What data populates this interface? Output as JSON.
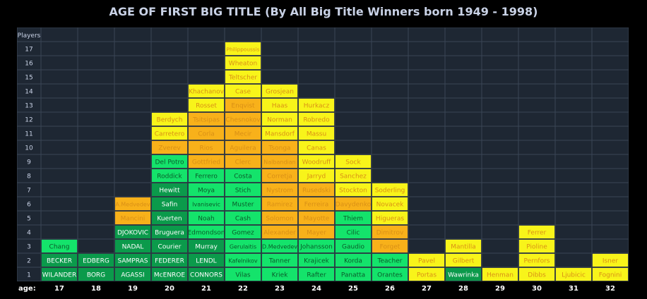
{
  "title": "AGE OF FIRST BIG TITLE (By All Big Title Winners born 1949 - 1998)",
  "chart_data": {
    "type": "table",
    "title": "AGE OF FIRST BIG TITLE (By All Big Title Winners born 1949 - 1998)",
    "ylabel": "Players",
    "xlabel": "age:",
    "ages": [
      "17",
      "18",
      "19",
      "20",
      "21",
      "22",
      "23",
      "24",
      "25",
      "26",
      "27",
      "28",
      "29",
      "30",
      "31",
      "32"
    ],
    "rows": [
      "1",
      "2",
      "3",
      "4",
      "5",
      "6",
      "7",
      "8",
      "9",
      "10",
      "11",
      "12",
      "13",
      "14",
      "15",
      "16",
      "17"
    ],
    "colors": {
      "dark-green": "#0b9a4b",
      "green": "#14e36b",
      "orange": "#f8b11a",
      "yellow": "#f8f41a",
      "text-light": "#ffffff",
      "text-dark": "#d98f16"
    },
    "columns": [
      {
        "age": "17",
        "players": [
          {
            "name": "WILANDER",
            "color": "dark-green"
          },
          {
            "name": "BECKER",
            "color": "dark-green"
          },
          {
            "name": "Chang",
            "color": "green"
          }
        ]
      },
      {
        "age": "18",
        "players": [
          {
            "name": "BORG",
            "color": "dark-green"
          },
          {
            "name": "EDBERG",
            "color": "dark-green"
          }
        ]
      },
      {
        "age": "19",
        "players": [
          {
            "name": "AGASSI",
            "color": "dark-green"
          },
          {
            "name": "SAMPRAS",
            "color": "dark-green"
          },
          {
            "name": "NADAL",
            "color": "dark-green"
          },
          {
            "name": "DJOKOVIC",
            "color": "dark-green"
          },
          {
            "name": "Mancini",
            "color": "orange"
          },
          {
            "name": "A.Medvedev",
            "color": "orange"
          }
        ]
      },
      {
        "age": "20",
        "players": [
          {
            "name": "McENROE",
            "color": "dark-green"
          },
          {
            "name": "FEDERER",
            "color": "dark-green"
          },
          {
            "name": "Courier",
            "color": "dark-green"
          },
          {
            "name": "Bruguera",
            "color": "dark-green"
          },
          {
            "name": "Kuerten",
            "color": "dark-green"
          },
          {
            "name": "Safin",
            "color": "dark-green"
          },
          {
            "name": "Hewitt",
            "color": "dark-green"
          },
          {
            "name": "Roddick",
            "color": "green"
          },
          {
            "name": "Del Potro",
            "color": "green"
          },
          {
            "name": "Zverev",
            "color": "orange"
          },
          {
            "name": "Carretero",
            "color": "yellow"
          },
          {
            "name": "Berdych",
            "color": "yellow"
          }
        ]
      },
      {
        "age": "21",
        "players": [
          {
            "name": "CONNORS",
            "color": "dark-green"
          },
          {
            "name": "LENDL",
            "color": "dark-green"
          },
          {
            "name": "Murray",
            "color": "dark-green"
          },
          {
            "name": "Edmondson",
            "color": "green"
          },
          {
            "name": "Noah",
            "color": "green"
          },
          {
            "name": "Ivanisevic",
            "color": "green"
          },
          {
            "name": "Moya",
            "color": "green"
          },
          {
            "name": "Ferrero",
            "color": "green"
          },
          {
            "name": "Gottfried",
            "color": "orange"
          },
          {
            "name": "Rios",
            "color": "orange"
          },
          {
            "name": "Corla",
            "color": "orange"
          },
          {
            "name": "Tsitsipas",
            "color": "orange"
          },
          {
            "name": "Rosset",
            "color": "yellow"
          },
          {
            "name": "Khachanov",
            "color": "yellow"
          }
        ]
      },
      {
        "age": "22",
        "players": [
          {
            "name": "Vilas",
            "color": "green"
          },
          {
            "name": "Kafelnikov",
            "color": "green"
          },
          {
            "name": "Gerulaitis",
            "color": "green"
          },
          {
            "name": "Gomez",
            "color": "green"
          },
          {
            "name": "Cash",
            "color": "green"
          },
          {
            "name": "Muster",
            "color": "green"
          },
          {
            "name": "Stich",
            "color": "green"
          },
          {
            "name": "Costa",
            "color": "green"
          },
          {
            "name": "Clerc",
            "color": "orange"
          },
          {
            "name": "Aguilera",
            "color": "orange"
          },
          {
            "name": "Mecir",
            "color": "orange"
          },
          {
            "name": "Chesnokov",
            "color": "orange"
          },
          {
            "name": "Enqvist",
            "color": "orange"
          },
          {
            "name": "Case",
            "color": "yellow"
          },
          {
            "name": "Teltscher",
            "color": "yellow"
          },
          {
            "name": "Wheaton",
            "color": "yellow"
          },
          {
            "name": "Philippoussis",
            "color": "yellow"
          }
        ]
      },
      {
        "age": "23",
        "players": [
          {
            "name": "Kriek",
            "color": "green"
          },
          {
            "name": "Tanner",
            "color": "green"
          },
          {
            "name": "D.Medvedev",
            "color": "green"
          },
          {
            "name": "Alexander",
            "color": "orange"
          },
          {
            "name": "Solomon",
            "color": "orange"
          },
          {
            "name": "Ramirez",
            "color": "orange"
          },
          {
            "name": "Nystrom",
            "color": "orange"
          },
          {
            "name": "Corretja",
            "color": "orange"
          },
          {
            "name": "Nalbandian",
            "color": "orange"
          },
          {
            "name": "Tsonga",
            "color": "orange"
          },
          {
            "name": "Mansdorf",
            "color": "yellow"
          },
          {
            "name": "Norman",
            "color": "yellow"
          },
          {
            "name": "Haas",
            "color": "yellow"
          },
          {
            "name": "Grosjean",
            "color": "yellow"
          }
        ]
      },
      {
        "age": "24",
        "players": [
          {
            "name": "Rafter",
            "color": "green"
          },
          {
            "name": "Krajicek",
            "color": "green"
          },
          {
            "name": "Johansson",
            "color": "green"
          },
          {
            "name": "Mayer",
            "color": "orange"
          },
          {
            "name": "Mayotte",
            "color": "orange"
          },
          {
            "name": "Ferreira",
            "color": "orange"
          },
          {
            "name": "Rusedski",
            "color": "orange"
          },
          {
            "name": "Jarryd",
            "color": "yellow"
          },
          {
            "name": "Woodruff",
            "color": "yellow"
          },
          {
            "name": "Canas",
            "color": "yellow"
          },
          {
            "name": "Massu",
            "color": "yellow"
          },
          {
            "name": "Robredo",
            "color": "yellow"
          },
          {
            "name": "Hurkacz",
            "color": "yellow"
          }
        ]
      },
      {
        "age": "25",
        "players": [
          {
            "name": "Panatta",
            "color": "green"
          },
          {
            "name": "Korda",
            "color": "green"
          },
          {
            "name": "Gaudio",
            "color": "green"
          },
          {
            "name": "Cilic",
            "color": "green"
          },
          {
            "name": "Thiem",
            "color": "green"
          },
          {
            "name": "Davydenko",
            "color": "orange"
          },
          {
            "name": "Stockton",
            "color": "yellow"
          },
          {
            "name": "Sanchez",
            "color": "yellow"
          },
          {
            "name": "Sock",
            "color": "yellow"
          }
        ]
      },
      {
        "age": "26",
        "players": [
          {
            "name": "Orantes",
            "color": "green"
          },
          {
            "name": "Teacher",
            "color": "green"
          },
          {
            "name": "Forget",
            "color": "orange"
          },
          {
            "name": "Dimitrov",
            "color": "orange"
          },
          {
            "name": "Higueras",
            "color": "yellow"
          },
          {
            "name": "Novacek",
            "color": "yellow"
          },
          {
            "name": "Soderling",
            "color": "yellow"
          }
        ]
      },
      {
        "age": "27",
        "players": [
          {
            "name": "Portas",
            "color": "yellow"
          },
          {
            "name": "Pavel",
            "color": "yellow"
          }
        ]
      },
      {
        "age": "28",
        "players": [
          {
            "name": "Wawrinka",
            "color": "dark-green"
          },
          {
            "name": "Gilbert",
            "color": "yellow"
          },
          {
            "name": "Mantilla",
            "color": "yellow"
          }
        ]
      },
      {
        "age": "29",
        "players": [
          {
            "name": "Henman",
            "color": "yellow"
          }
        ]
      },
      {
        "age": "30",
        "players": [
          {
            "name": "Dibbs",
            "color": "yellow"
          },
          {
            "name": "Pernfors",
            "color": "yellow"
          },
          {
            "name": "Pioline",
            "color": "yellow"
          },
          {
            "name": "Ferrer",
            "color": "yellow"
          }
        ]
      },
      {
        "age": "31",
        "players": [
          {
            "name": "Ljubicic",
            "color": "yellow"
          }
        ]
      },
      {
        "age": "32",
        "players": [
          {
            "name": "Fognini",
            "color": "yellow"
          },
          {
            "name": "Isner",
            "color": "yellow"
          }
        ]
      }
    ]
  }
}
